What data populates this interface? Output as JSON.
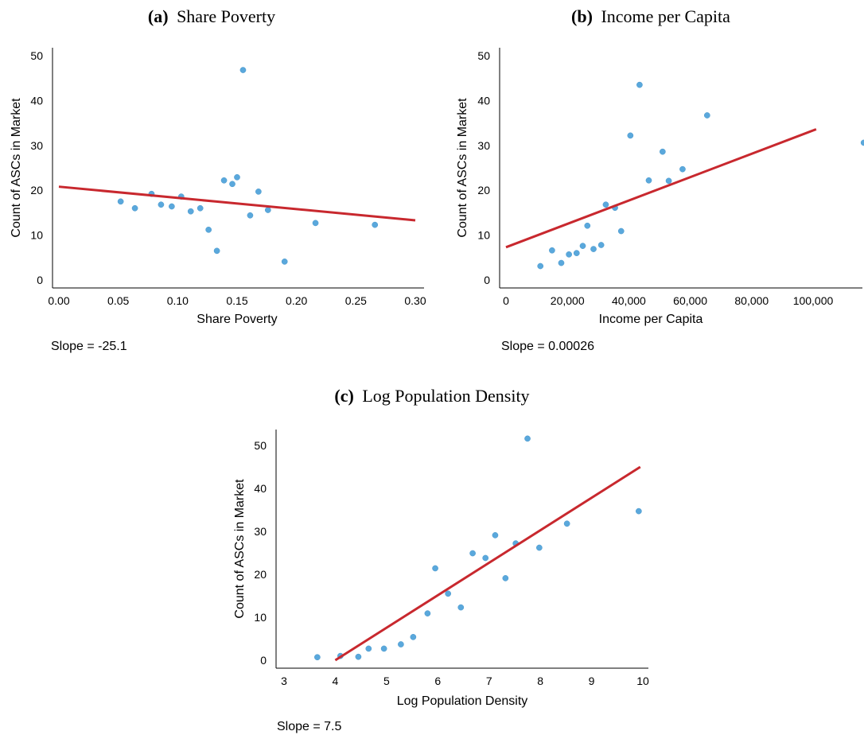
{
  "chart_data": [
    {
      "type": "scatter",
      "title_prefix": "(a)",
      "title": "Share Poverty",
      "xlabel": "Share Poverty",
      "ylabel": "Count of ASCs in Market",
      "xlim": [
        0,
        0.3
      ],
      "ylim": [
        0,
        50
      ],
      "xticks": [
        0,
        0.05,
        0.1,
        0.15,
        0.2,
        0.25,
        0.3
      ],
      "xtick_labels": [
        "0.00",
        "0.05",
        "0.10",
        "0.15",
        "0.20",
        "0.25",
        "0.30"
      ],
      "yticks": [
        0,
        10,
        20,
        30,
        40,
        50
      ],
      "ytick_labels": [
        "0",
        "10",
        "20",
        "30",
        "40",
        "50"
      ],
      "points": [
        [
          0.052,
          17.5
        ],
        [
          0.064,
          16.0
        ],
        [
          0.078,
          19.2
        ],
        [
          0.086,
          16.8
        ],
        [
          0.095,
          16.4
        ],
        [
          0.103,
          18.6
        ],
        [
          0.111,
          15.3
        ],
        [
          0.119,
          16.0
        ],
        [
          0.126,
          11.2
        ],
        [
          0.133,
          6.5
        ],
        [
          0.139,
          22.2
        ],
        [
          0.146,
          21.4
        ],
        [
          0.15,
          22.9
        ],
        [
          0.155,
          46.8
        ],
        [
          0.161,
          14.4
        ],
        [
          0.168,
          19.7
        ],
        [
          0.176,
          15.6
        ],
        [
          0.19,
          4.1
        ],
        [
          0.216,
          12.7
        ],
        [
          0.266,
          12.3
        ]
      ],
      "fit": {
        "x": [
          0,
          0.3
        ],
        "y": [
          20.8,
          13.3
        ]
      },
      "slope_text": "Slope = -25.1"
    },
    {
      "type": "scatter",
      "title_prefix": "(b)",
      "title": "Income per Capita",
      "xlabel": "Income per Capita",
      "ylabel": "Count of ASCs in Market",
      "xlim": [
        0,
        117000
      ],
      "ylim": [
        0,
        50
      ],
      "xticks": [
        0,
        20000,
        40000,
        60000,
        80000,
        100000
      ],
      "xtick_labels": [
        "0",
        "20,000",
        "40,000",
        "60,000",
        "80,000",
        "100,000"
      ],
      "yticks": [
        0,
        10,
        20,
        30,
        40,
        50
      ],
      "ytick_labels": [
        "0",
        "10",
        "20",
        "30",
        "40",
        "50"
      ],
      "points": [
        [
          11200,
          3.1
        ],
        [
          15000,
          6.6
        ],
        [
          18000,
          3.8
        ],
        [
          20500,
          5.7
        ],
        [
          23000,
          6.0
        ],
        [
          25000,
          7.6
        ],
        [
          26500,
          12.1
        ],
        [
          28500,
          6.9
        ],
        [
          31000,
          7.8
        ],
        [
          32500,
          16.8
        ],
        [
          35500,
          16.1
        ],
        [
          37500,
          10.9
        ],
        [
          40500,
          32.2
        ],
        [
          43500,
          43.5
        ],
        [
          46500,
          22.2
        ],
        [
          51000,
          28.6
        ],
        [
          53000,
          22.1
        ],
        [
          57500,
          24.7
        ],
        [
          65500,
          36.7
        ],
        [
          116500,
          30.6
        ]
      ],
      "fit": {
        "x": [
          0,
          101000
        ],
        "y": [
          7.3,
          33.6
        ]
      },
      "slope_text": "Slope = 0.00026"
    },
    {
      "type": "scatter",
      "title_prefix": "(c)",
      "title": "Log Population Density",
      "xlabel": "Log Population Density",
      "ylabel": "Count of ASCs in Market",
      "xlim": [
        2.75,
        10.1
      ],
      "ylim": [
        -1,
        53
      ],
      "xticks": [
        3,
        4,
        5,
        6,
        7,
        8,
        9,
        10
      ],
      "xtick_labels": [
        "3",
        "4",
        "5",
        "6",
        "7",
        "8",
        "9",
        "10"
      ],
      "yticks": [
        0,
        10,
        20,
        30,
        40,
        50
      ],
      "ytick_labels": [
        "0",
        "10",
        "20",
        "30",
        "40",
        "50"
      ],
      "points": [
        [
          3.65,
          0.7
        ],
        [
          4.1,
          1.0
        ],
        [
          4.45,
          0.8
        ],
        [
          4.65,
          2.7
        ],
        [
          4.95,
          2.7
        ],
        [
          5.28,
          3.7
        ],
        [
          5.52,
          5.4
        ],
        [
          5.8,
          10.9
        ],
        [
          5.95,
          21.4
        ],
        [
          6.2,
          15.5
        ],
        [
          6.45,
          12.3
        ],
        [
          6.68,
          24.9
        ],
        [
          6.93,
          23.8
        ],
        [
          7.12,
          29.1
        ],
        [
          7.32,
          19.1
        ],
        [
          7.52,
          27.2
        ],
        [
          7.75,
          51.6
        ],
        [
          7.98,
          26.2
        ],
        [
          8.52,
          31.8
        ],
        [
          9.92,
          34.7
        ]
      ],
      "fit": {
        "x": [
          4.0,
          9.95
        ],
        "y": [
          0,
          45.0
        ]
      },
      "slope_text": "Slope = 7.5"
    }
  ]
}
